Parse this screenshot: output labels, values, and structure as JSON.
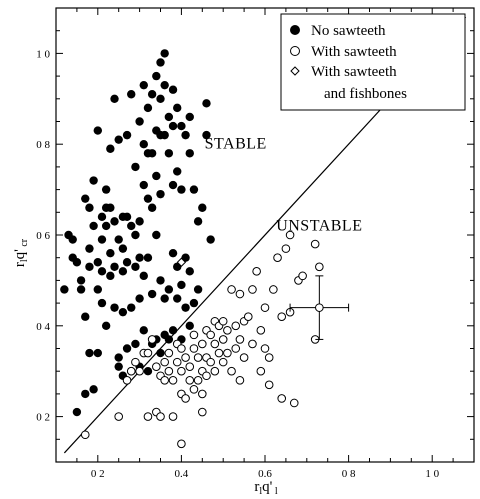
{
  "chart_data": {
    "type": "scatter",
    "xlabel": "r₁q'₁",
    "ylabel": "r₁q'cr",
    "xlim": [
      0.1,
      1.1
    ],
    "ylim": [
      0.1,
      1.1
    ],
    "x_ticks": [
      0.2,
      0.4,
      0.6,
      0.8,
      1.0
    ],
    "x_tick_labels": [
      "0 2",
      "0.4",
      "0.6",
      "0 8",
      "1 0"
    ],
    "y_ticks": [
      0.2,
      0.4,
      0.6,
      0.8,
      1.0
    ],
    "y_tick_labels": [
      "0 2",
      "0 4",
      "0 6",
      "0 8",
      "1 0"
    ],
    "grid": false,
    "legend_position": "top-right",
    "regions": [
      {
        "label": "STABLE",
        "x": 0.53,
        "y": 0.79
      },
      {
        "label": "UNSTABLE",
        "x": 0.73,
        "y": 0.61
      }
    ],
    "reference_line": {
      "name": "stability boundary",
      "points": [
        [
          0.12,
          0.12
        ],
        [
          1.08,
          1.08
        ]
      ]
    },
    "error_bar": {
      "x": 0.73,
      "y": 0.44,
      "xerr": 0.07,
      "yerr": 0.07
    },
    "series": [
      {
        "name": "No sawteeth",
        "marker": "filled-circle",
        "points": [
          [
            0.12,
            0.48
          ],
          [
            0.13,
            0.6
          ],
          [
            0.14,
            0.59
          ],
          [
            0.14,
            0.55
          ],
          [
            0.15,
            0.21
          ],
          [
            0.15,
            0.54
          ],
          [
            0.16,
            0.5
          ],
          [
            0.16,
            0.48
          ],
          [
            0.17,
            0.68
          ],
          [
            0.17,
            0.42
          ],
          [
            0.17,
            0.25
          ],
          [
            0.18,
            0.53
          ],
          [
            0.18,
            0.66
          ],
          [
            0.18,
            0.57
          ],
          [
            0.18,
            0.34
          ],
          [
            0.19,
            0.26
          ],
          [
            0.19,
            0.62
          ],
          [
            0.19,
            0.72
          ],
          [
            0.2,
            0.54
          ],
          [
            0.2,
            0.48
          ],
          [
            0.2,
            0.83
          ],
          [
            0.2,
            0.34
          ],
          [
            0.21,
            0.64
          ],
          [
            0.21,
            0.59
          ],
          [
            0.21,
            0.52
          ],
          [
            0.21,
            0.45
          ],
          [
            0.22,
            0.7
          ],
          [
            0.22,
            0.66
          ],
          [
            0.22,
            0.62
          ],
          [
            0.22,
            0.4
          ],
          [
            0.23,
            0.66
          ],
          [
            0.23,
            0.56
          ],
          [
            0.23,
            0.51
          ],
          [
            0.23,
            0.79
          ],
          [
            0.24,
            0.9
          ],
          [
            0.24,
            0.63
          ],
          [
            0.24,
            0.53
          ],
          [
            0.24,
            0.44
          ],
          [
            0.25,
            0.59
          ],
          [
            0.25,
            0.33
          ],
          [
            0.25,
            0.31
          ],
          [
            0.25,
            0.81
          ],
          [
            0.26,
            0.64
          ],
          [
            0.26,
            0.57
          ],
          [
            0.26,
            0.52
          ],
          [
            0.26,
            0.43
          ],
          [
            0.26,
            0.29
          ],
          [
            0.27,
            0.82
          ],
          [
            0.27,
            0.64
          ],
          [
            0.27,
            0.54
          ],
          [
            0.27,
            0.35
          ],
          [
            0.28,
            0.91
          ],
          [
            0.28,
            0.62
          ],
          [
            0.28,
            0.44
          ],
          [
            0.28,
            0.3
          ],
          [
            0.29,
            0.75
          ],
          [
            0.29,
            0.6
          ],
          [
            0.29,
            0.53
          ],
          [
            0.29,
            0.36
          ],
          [
            0.3,
            0.85
          ],
          [
            0.3,
            0.63
          ],
          [
            0.3,
            0.55
          ],
          [
            0.3,
            0.46
          ],
          [
            0.3,
            0.31
          ],
          [
            0.31,
            0.93
          ],
          [
            0.31,
            0.8
          ],
          [
            0.31,
            0.71
          ],
          [
            0.31,
            0.51
          ],
          [
            0.31,
            0.39
          ],
          [
            0.32,
            0.88
          ],
          [
            0.32,
            0.78
          ],
          [
            0.32,
            0.68
          ],
          [
            0.32,
            0.55
          ],
          [
            0.32,
            0.3
          ],
          [
            0.33,
            0.91
          ],
          [
            0.33,
            0.78
          ],
          [
            0.33,
            0.66
          ],
          [
            0.33,
            0.47
          ],
          [
            0.33,
            0.36
          ],
          [
            0.34,
            0.95
          ],
          [
            0.34,
            0.83
          ],
          [
            0.34,
            0.73
          ],
          [
            0.34,
            0.6
          ],
          [
            0.34,
            0.37
          ],
          [
            0.35,
            0.98
          ],
          [
            0.35,
            0.9
          ],
          [
            0.35,
            0.82
          ],
          [
            0.35,
            0.69
          ],
          [
            0.35,
            0.5
          ],
          [
            0.35,
            0.34
          ],
          [
            0.36,
            1.0
          ],
          [
            0.36,
            0.93
          ],
          [
            0.36,
            0.82
          ],
          [
            0.36,
            0.46
          ],
          [
            0.36,
            0.38
          ],
          [
            0.37,
            0.86
          ],
          [
            0.37,
            0.78
          ],
          [
            0.37,
            0.48
          ],
          [
            0.37,
            0.37
          ],
          [
            0.38,
            0.84
          ],
          [
            0.38,
            0.92
          ],
          [
            0.38,
            0.71
          ],
          [
            0.38,
            0.56
          ],
          [
            0.38,
            0.39
          ],
          [
            0.39,
            0.88
          ],
          [
            0.39,
            0.74
          ],
          [
            0.39,
            0.53
          ],
          [
            0.39,
            0.46
          ],
          [
            0.4,
            0.84
          ],
          [
            0.4,
            0.7
          ],
          [
            0.4,
            0.49
          ],
          [
            0.4,
            0.37
          ],
          [
            0.41,
            0.82
          ],
          [
            0.41,
            0.55
          ],
          [
            0.41,
            0.44
          ],
          [
            0.42,
            0.86
          ],
          [
            0.42,
            0.78
          ],
          [
            0.42,
            0.52
          ],
          [
            0.42,
            0.4
          ],
          [
            0.43,
            0.7
          ],
          [
            0.43,
            0.45
          ],
          [
            0.44,
            0.63
          ],
          [
            0.44,
            0.48
          ],
          [
            0.45,
            0.66
          ],
          [
            0.46,
            0.89
          ],
          [
            0.46,
            0.82
          ],
          [
            0.47,
            0.59
          ]
        ]
      },
      {
        "name": "With sawteeth",
        "marker": "open-circle",
        "points": [
          [
            0.17,
            0.16
          ],
          [
            0.25,
            0.2
          ],
          [
            0.27,
            0.28
          ],
          [
            0.28,
            0.3
          ],
          [
            0.29,
            0.32
          ],
          [
            0.3,
            0.3
          ],
          [
            0.31,
            0.34
          ],
          [
            0.32,
            0.34
          ],
          [
            0.32,
            0.2
          ],
          [
            0.33,
            0.37
          ],
          [
            0.34,
            0.31
          ],
          [
            0.34,
            0.21
          ],
          [
            0.35,
            0.29
          ],
          [
            0.35,
            0.2
          ],
          [
            0.36,
            0.32
          ],
          [
            0.36,
            0.28
          ],
          [
            0.37,
            0.34
          ],
          [
            0.37,
            0.3
          ],
          [
            0.38,
            0.28
          ],
          [
            0.38,
            0.2
          ],
          [
            0.39,
            0.36
          ],
          [
            0.39,
            0.32
          ],
          [
            0.4,
            0.35
          ],
          [
            0.4,
            0.3
          ],
          [
            0.4,
            0.25
          ],
          [
            0.4,
            0.14
          ],
          [
            0.41,
            0.33
          ],
          [
            0.41,
            0.24
          ],
          [
            0.42,
            0.31
          ],
          [
            0.42,
            0.28
          ],
          [
            0.43,
            0.38
          ],
          [
            0.43,
            0.35
          ],
          [
            0.43,
            0.26
          ],
          [
            0.44,
            0.33
          ],
          [
            0.44,
            0.28
          ],
          [
            0.45,
            0.36
          ],
          [
            0.45,
            0.3
          ],
          [
            0.45,
            0.25
          ],
          [
            0.45,
            0.21
          ],
          [
            0.46,
            0.39
          ],
          [
            0.46,
            0.33
          ],
          [
            0.46,
            0.29
          ],
          [
            0.47,
            0.38
          ],
          [
            0.47,
            0.32
          ],
          [
            0.48,
            0.41
          ],
          [
            0.48,
            0.36
          ],
          [
            0.48,
            0.3
          ],
          [
            0.49,
            0.4
          ],
          [
            0.49,
            0.34
          ],
          [
            0.5,
            0.41
          ],
          [
            0.5,
            0.37
          ],
          [
            0.5,
            0.32
          ],
          [
            0.51,
            0.39
          ],
          [
            0.51,
            0.34
          ],
          [
            0.52,
            0.48
          ],
          [
            0.52,
            0.3
          ],
          [
            0.53,
            0.4
          ],
          [
            0.53,
            0.35
          ],
          [
            0.54,
            0.47
          ],
          [
            0.54,
            0.37
          ],
          [
            0.54,
            0.28
          ],
          [
            0.55,
            0.41
          ],
          [
            0.55,
            0.33
          ],
          [
            0.56,
            0.42
          ],
          [
            0.57,
            0.48
          ],
          [
            0.57,
            0.36
          ],
          [
            0.58,
            0.52
          ],
          [
            0.59,
            0.39
          ],
          [
            0.59,
            0.3
          ],
          [
            0.6,
            0.44
          ],
          [
            0.6,
            0.35
          ],
          [
            0.61,
            0.33
          ],
          [
            0.61,
            0.27
          ],
          [
            0.62,
            0.48
          ],
          [
            0.63,
            0.55
          ],
          [
            0.64,
            0.24
          ],
          [
            0.64,
            0.42
          ],
          [
            0.65,
            0.57
          ],
          [
            0.66,
            0.6
          ],
          [
            0.66,
            0.43
          ],
          [
            0.67,
            0.23
          ],
          [
            0.68,
            0.5
          ],
          [
            0.69,
            0.51
          ],
          [
            0.72,
            0.37
          ],
          [
            0.72,
            0.58
          ],
          [
            0.73,
            0.53
          ]
        ]
      },
      {
        "name": "With sawteeth and fishbones",
        "marker": "open-diamond",
        "points": [
          [
            0.4,
            0.54
          ]
        ]
      }
    ]
  }
}
